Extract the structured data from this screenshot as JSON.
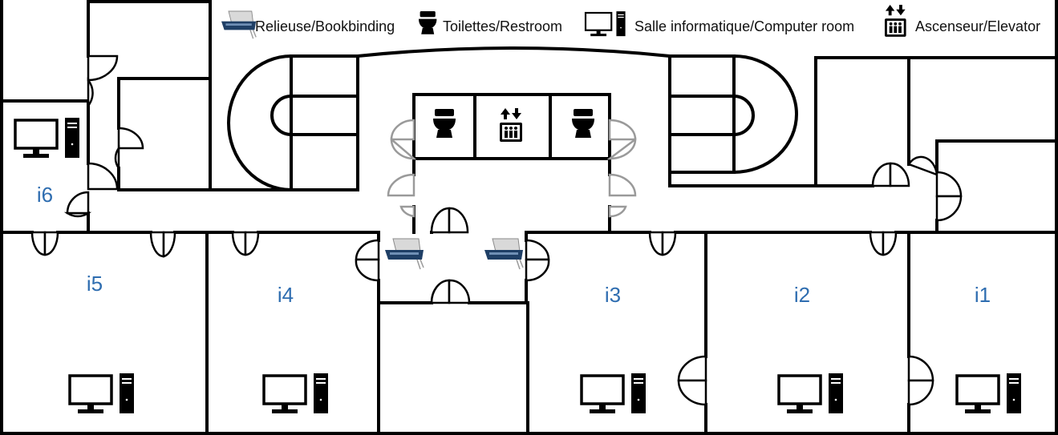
{
  "legend": [
    {
      "icon": "bookbinding-icon",
      "label": "Relieuse/Bookbinding"
    },
    {
      "icon": "toilet-icon",
      "label": "Toilettes/Restroom"
    },
    {
      "icon": "computer-icon",
      "label": "Salle informatique/Computer room"
    },
    {
      "icon": "elevator-icon",
      "label": "Ascenseur/Elevator"
    }
  ],
  "rooms": [
    {
      "id": "i1",
      "label": "i1"
    },
    {
      "id": "i2",
      "label": "i2"
    },
    {
      "id": "i3",
      "label": "i3"
    },
    {
      "id": "i4",
      "label": "i4"
    },
    {
      "id": "i5",
      "label": "i5"
    },
    {
      "id": "i6",
      "label": "i6"
    }
  ],
  "colors": {
    "label": "#2e6db0",
    "wall": "#000000",
    "door_restroom": "#9a9a9a",
    "binder": "#1f3f66"
  }
}
